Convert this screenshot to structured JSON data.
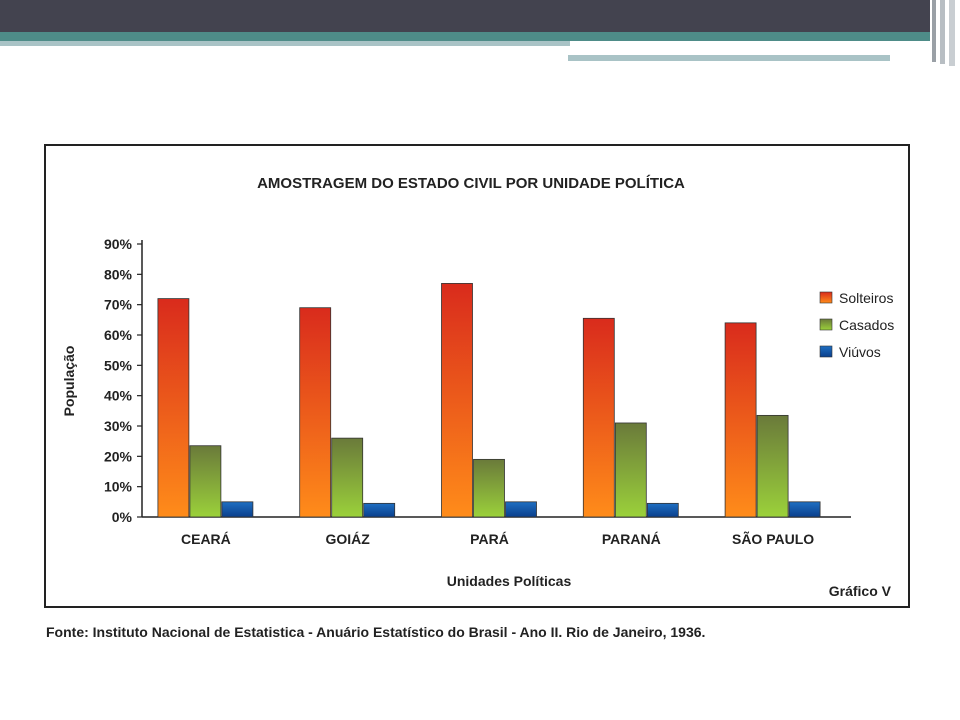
{
  "theme": {
    "header_dark": "#43434f",
    "header_teal": "#4e8c88",
    "header_light": "#a9c3c6"
  },
  "chart_data": {
    "type": "bar",
    "title": "AMOSTRAGEM DO ESTADO CIVIL POR UNIDADE POLÍTICA",
    "xlabel": "Unidades Políticas",
    "ylabel": "População",
    "figure_label": "Gráfico V",
    "categories": [
      "CEARÁ",
      "GOIÁZ",
      "PARÁ",
      "PARANÁ",
      "SÃO PAULO"
    ],
    "yticks": [
      "0%",
      "10%",
      "20%",
      "30%",
      "40%",
      "50%",
      "60%",
      "70%",
      "80%",
      "90%"
    ],
    "ylim": [
      0,
      90
    ],
    "grid": false,
    "legend_position": "right",
    "series": [
      {
        "name": "Solteiros",
        "values": [
          72,
          69,
          77,
          65.5,
          64
        ],
        "color_top": "#d92b1c",
        "color_bottom": "#ff8c1a"
      },
      {
        "name": "Casados",
        "values": [
          23.5,
          26,
          19,
          31,
          33.5
        ],
        "color_top": "#6a7a3a",
        "color_bottom": "#9bd13a"
      },
      {
        "name": "Viúvos",
        "values": [
          5,
          4.5,
          5,
          4.5,
          5
        ],
        "color_top": "#1f6fc2",
        "color_bottom": "#0a3f8c"
      }
    ]
  },
  "source_note": "Fonte: Instituto Nacional de Estatistica - Anuário Estatístico do Brasil - Ano II. Rio de Janeiro, 1936."
}
